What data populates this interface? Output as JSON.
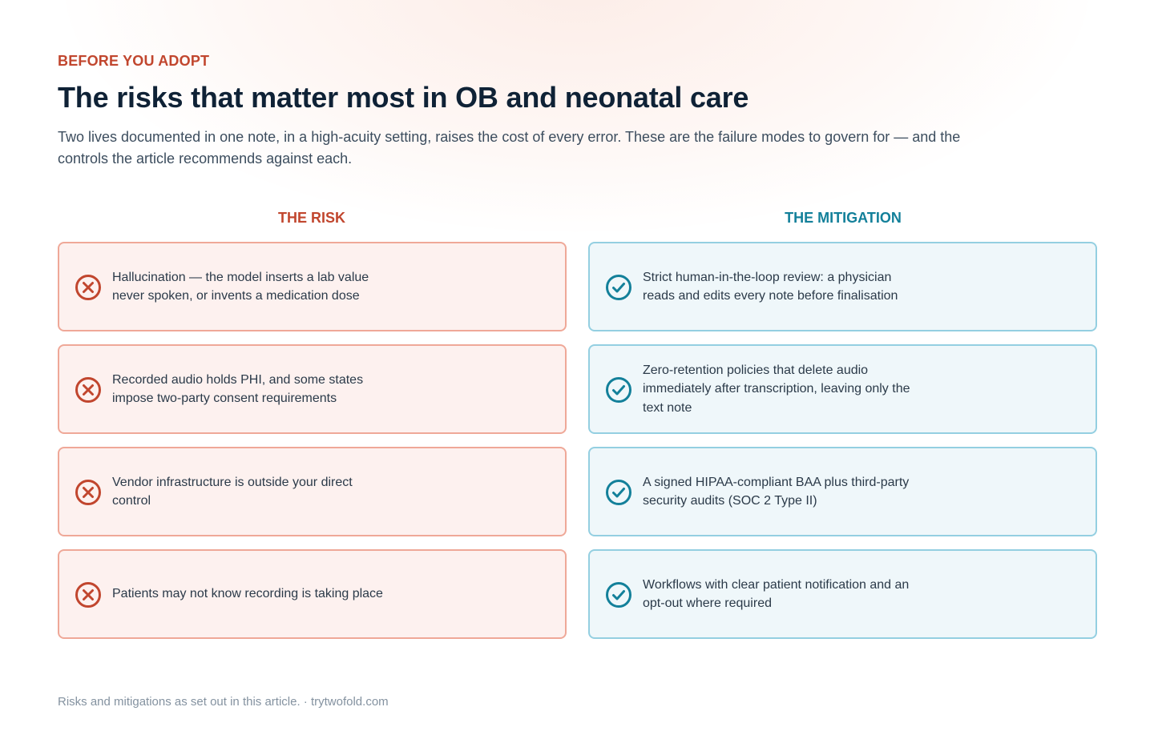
{
  "eyebrow": "BEFORE YOU ADOPT",
  "title": "The risks that matter most in OB and neonatal care",
  "subtitle": "Two lives documented in one note, in a high-acuity setting, raises the cost of every error. These are the failure modes to govern for — and the controls the article recommends against each.",
  "columns": {
    "risk": "THE RISK",
    "mitigation": "THE MITIGATION"
  },
  "rows": [
    {
      "risk": "Hallucination — the model inserts a lab value never spoken, or invents a medication dose",
      "mitigation": "Strict human-in-the-loop review: a physician reads and edits every note before finalisation"
    },
    {
      "risk": "Recorded audio holds PHI, and some states impose two-party consent requirements",
      "mitigation": "Zero-retention policies that delete audio immediately after transcription, leaving only the text note"
    },
    {
      "risk": "Vendor infrastructure is outside your direct control",
      "mitigation": "A signed HIPAA-compliant BAA plus third-party security audits (SOC 2 Type II)"
    },
    {
      "risk": "Patients may not know recording is taking place",
      "mitigation": "Workflows with clear patient notification and an opt-out where required"
    }
  ],
  "icons": {
    "risk": "x-circle-icon",
    "mitigation": "check-circle-icon"
  },
  "colors": {
    "risk_accent": "#c1462e",
    "mitigation_accent": "#13809a",
    "title": "#0f2236"
  },
  "footer": "Risks and mitigations as set out in this article. · trytwofold.com"
}
